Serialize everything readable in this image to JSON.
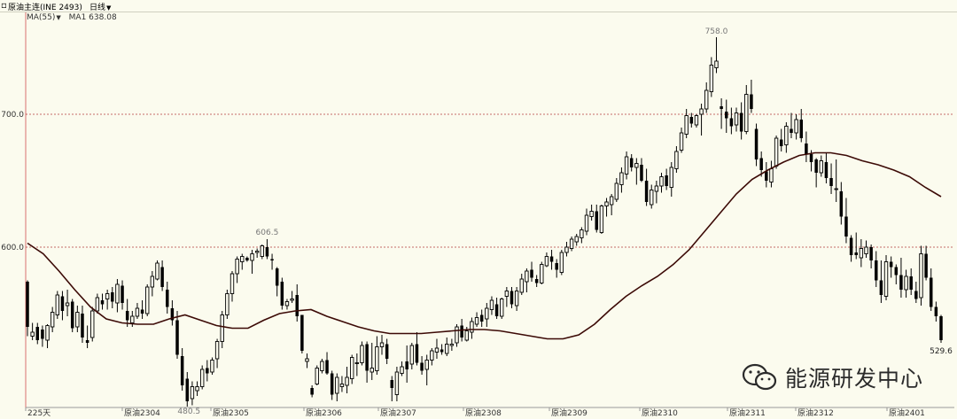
{
  "header": {
    "symbol_icon": "square-icon",
    "title": "原油主连(INE 2493)",
    "period": "日线",
    "period_icon": "chevron-down-icon"
  },
  "indicator": {
    "selector": "MA(55)",
    "selector_icon": "chevron-down-icon",
    "value_text": "MA1 638.08"
  },
  "watermark": {
    "text": "能源研发中心",
    "icon": "wechat-icon"
  },
  "colors": {
    "background": "#fbfbee",
    "up_candle": "#000000",
    "down_candle": "#000000",
    "ma_line": "#3c0a06",
    "grid_dashed": "#b43c3c",
    "axis_line": "#d87070"
  },
  "chart_data": {
    "type": "candlestick",
    "indicator": "MA55",
    "ylim": [
      470,
      780
    ],
    "yticks": [
      600.0,
      700.0
    ],
    "ytick_labels": [
      "600.0",
      "700.0"
    ],
    "grid_lines": [
      600,
      700
    ],
    "xtick_labels": [
      "225天",
      "原油2304",
      "原油2305",
      "原油2306",
      "原油2307",
      "原油2308",
      "原油2309",
      "原油2310",
      "原油2311",
      "原油2312",
      "原油2401"
    ],
    "annotations": [
      {
        "text": "758.0",
        "type": "max"
      },
      {
        "text": "606.5",
        "type": "local-high"
      },
      {
        "text": "480.5",
        "type": "min"
      },
      {
        "text": "529.6",
        "type": "last-low"
      }
    ],
    "ma_points": [
      [
        0,
        603
      ],
      [
        5,
        595
      ],
      [
        10,
        582
      ],
      [
        15,
        568
      ],
      [
        20,
        555
      ],
      [
        25,
        546
      ],
      [
        30,
        543
      ],
      [
        35,
        542
      ],
      [
        40,
        542
      ],
      [
        45,
        546
      ],
      [
        50,
        549
      ],
      [
        55,
        545
      ],
      [
        60,
        541
      ],
      [
        65,
        539
      ],
      [
        70,
        539
      ],
      [
        75,
        545
      ],
      [
        80,
        550
      ],
      [
        85,
        552
      ],
      [
        90,
        553
      ],
      [
        95,
        548
      ],
      [
        100,
        544
      ],
      [
        105,
        540
      ],
      [
        110,
        537
      ],
      [
        115,
        535
      ],
      [
        120,
        535
      ],
      [
        125,
        535
      ],
      [
        130,
        536
      ],
      [
        135,
        537
      ],
      [
        140,
        538
      ],
      [
        145,
        538
      ],
      [
        150,
        537
      ],
      [
        155,
        535
      ],
      [
        160,
        533
      ],
      [
        165,
        531
      ],
      [
        170,
        531
      ],
      [
        175,
        534
      ],
      [
        180,
        542
      ],
      [
        185,
        553
      ],
      [
        190,
        563
      ],
      [
        195,
        571
      ],
      [
        200,
        578
      ],
      [
        205,
        587
      ],
      [
        210,
        598
      ],
      [
        215,
        612
      ],
      [
        220,
        626
      ],
      [
        225,
        640
      ],
      [
        230,
        651
      ],
      [
        235,
        658
      ],
      [
        240,
        664
      ],
      [
        245,
        669
      ],
      [
        250,
        671
      ],
      [
        255,
        671
      ],
      [
        260,
        669
      ],
      [
        265,
        665
      ],
      [
        270,
        662
      ],
      [
        275,
        658
      ],
      [
        280,
        653
      ],
      [
        285,
        645
      ],
      [
        290,
        638
      ]
    ],
    "ohlc": [
      [
        574,
        575,
        533,
        540
      ],
      [
        533,
        543,
        530,
        536
      ],
      [
        540,
        543,
        527,
        530
      ],
      [
        538,
        541,
        525,
        531
      ],
      [
        530,
        542,
        524,
        541
      ],
      [
        540,
        555,
        536,
        551
      ],
      [
        549,
        567,
        546,
        564
      ],
      [
        563,
        567,
        545,
        552
      ],
      [
        556,
        568,
        548,
        558
      ],
      [
        559,
        561,
        536,
        539
      ],
      [
        540,
        556,
        536,
        551
      ],
      [
        550,
        556,
        528,
        532
      ],
      [
        530,
        541,
        524,
        528
      ],
      [
        532,
        555,
        529,
        552
      ],
      [
        552,
        565,
        550,
        562
      ],
      [
        560,
        565,
        553,
        557
      ],
      [
        561,
        568,
        553,
        565
      ],
      [
        566,
        570,
        554,
        559
      ],
      [
        558,
        576,
        551,
        572
      ],
      [
        571,
        575,
        553,
        558
      ],
      [
        552,
        561,
        540,
        545
      ],
      [
        543,
        552,
        540,
        548
      ],
      [
        548,
        558,
        546,
        554
      ],
      [
        553,
        560,
        546,
        550
      ],
      [
        550,
        572,
        548,
        570
      ],
      [
        570,
        582,
        563,
        578
      ],
      [
        576,
        590,
        575,
        588
      ],
      [
        585,
        590,
        567,
        570
      ],
      [
        568,
        574,
        550,
        555
      ],
      [
        554,
        560,
        541,
        545
      ],
      [
        545,
        552,
        516,
        519
      ],
      [
        518,
        524,
        492,
        496
      ],
      [
        501,
        506,
        480,
        484
      ],
      [
        486,
        499,
        481,
        495
      ],
      [
        492,
        499,
        488,
        495
      ],
      [
        495,
        511,
        493,
        508
      ],
      [
        509,
        515,
        499,
        505
      ],
      [
        506,
        517,
        504,
        515
      ],
      [
        516,
        531,
        509,
        529
      ],
      [
        529,
        552,
        524,
        549
      ],
      [
        549,
        568,
        546,
        565
      ],
      [
        565,
        582,
        559,
        580
      ],
      [
        580,
        593,
        573,
        591
      ],
      [
        589,
        595,
        583,
        593
      ],
      [
        592,
        593,
        589,
        590
      ],
      [
        590,
        598,
        580,
        595
      ],
      [
        596,
        599,
        592,
        597
      ],
      [
        593,
        602,
        591,
        601
      ],
      [
        600,
        606,
        591,
        593
      ],
      [
        591,
        595,
        583,
        590
      ],
      [
        584,
        585,
        563,
        571
      ],
      [
        574,
        577,
        553,
        556
      ],
      [
        556,
        561,
        553,
        559
      ],
      [
        560,
        567,
        558,
        561
      ],
      [
        564,
        572,
        544,
        548
      ],
      [
        549,
        549,
        520,
        522
      ],
      [
        514,
        520,
        509,
        516
      ],
      [
        494,
        496,
        487,
        489
      ],
      [
        497,
        511,
        496,
        509
      ],
      [
        507,
        516,
        505,
        514
      ],
      [
        515,
        521,
        504,
        505
      ],
      [
        505,
        507,
        485,
        489
      ],
      [
        490,
        505,
        484,
        502
      ],
      [
        495,
        503,
        491,
        497
      ],
      [
        496,
        510,
        490,
        502
      ],
      [
        501,
        519,
        497,
        517
      ],
      [
        513,
        520,
        503,
        513
      ],
      [
        513,
        529,
        511,
        526
      ],
      [
        527,
        529,
        498,
        507
      ],
      [
        506,
        528,
        500,
        509
      ],
      [
        507,
        533,
        504,
        525
      ],
      [
        525,
        534,
        519,
        528
      ],
      [
        527,
        531,
        512,
        516
      ],
      [
        500,
        503,
        484,
        494
      ],
      [
        489,
        510,
        484,
        506
      ],
      [
        505,
        514,
        503,
        510
      ],
      [
        514,
        526,
        498,
        508
      ],
      [
        512,
        528,
        508,
        526
      ],
      [
        527,
        536,
        511,
        513
      ],
      [
        513,
        518,
        504,
        507
      ],
      [
        508,
        519,
        496,
        515
      ],
      [
        515,
        524,
        511,
        522
      ],
      [
        521,
        531,
        516,
        524
      ],
      [
        523,
        527,
        519,
        521
      ],
      [
        520,
        532,
        518,
        527
      ],
      [
        526,
        531,
        522,
        527
      ],
      [
        528,
        542,
        525,
        540
      ],
      [
        541,
        546,
        529,
        532
      ],
      [
        530,
        540,
        529,
        537
      ],
      [
        536,
        547,
        531,
        544
      ],
      [
        542,
        551,
        540,
        547
      ],
      [
        549,
        553,
        540,
        544
      ],
      [
        546,
        558,
        540,
        554
      ],
      [
        553,
        563,
        549,
        560
      ],
      [
        557,
        562,
        546,
        548
      ],
      [
        548,
        562,
        546,
        561
      ],
      [
        563,
        570,
        555,
        567
      ],
      [
        567,
        570,
        554,
        557
      ],
      [
        556,
        570,
        552,
        567
      ],
      [
        566,
        580,
        564,
        576
      ],
      [
        574,
        584,
        566,
        582
      ],
      [
        583,
        589,
        574,
        577
      ],
      [
        576,
        579,
        570,
        573
      ],
      [
        573,
        589,
        572,
        587
      ],
      [
        586,
        596,
        585,
        593
      ],
      [
        593,
        598,
        583,
        589
      ],
      [
        588,
        591,
        577,
        583
      ],
      [
        581,
        598,
        579,
        596
      ],
      [
        596,
        604,
        593,
        600
      ],
      [
        599,
        608,
        597,
        606
      ],
      [
        604,
        610,
        601,
        608
      ],
      [
        607,
        615,
        603,
        613
      ],
      [
        612,
        629,
        609,
        624
      ],
      [
        623,
        632,
        620,
        627
      ],
      [
        627,
        632,
        611,
        613
      ],
      [
        611,
        632,
        610,
        631
      ],
      [
        631,
        637,
        623,
        634
      ],
      [
        632,
        640,
        624,
        638
      ],
      [
        636,
        652,
        634,
        648
      ],
      [
        647,
        660,
        641,
        656
      ],
      [
        655,
        672,
        651,
        668
      ],
      [
        667,
        670,
        657,
        660
      ],
      [
        660,
        667,
        647,
        663
      ],
      [
        662,
        667,
        649,
        650
      ],
      [
        650,
        659,
        631,
        634
      ],
      [
        632,
        647,
        629,
        643
      ],
      [
        642,
        650,
        633,
        646
      ],
      [
        646,
        656,
        641,
        653
      ],
      [
        654,
        659,
        643,
        646
      ],
      [
        645,
        664,
        638,
        660
      ],
      [
        659,
        676,
        656,
        672
      ],
      [
        673,
        690,
        671,
        686
      ],
      [
        685,
        704,
        682,
        699
      ],
      [
        698,
        701,
        690,
        693
      ],
      [
        692,
        700,
        690,
        699
      ],
      [
        700,
        708,
        684,
        704
      ],
      [
        704,
        724,
        701,
        718
      ],
      [
        717,
        743,
        713,
        737
      ],
      [
        735,
        758,
        731,
        740
      ],
      [
        706,
        712,
        689,
        704
      ],
      [
        702,
        711,
        686,
        697
      ],
      [
        697,
        705,
        685,
        691
      ],
      [
        692,
        705,
        687,
        701
      ],
      [
        701,
        709,
        681,
        687
      ],
      [
        687,
        722,
        685,
        715
      ],
      [
        715,
        726,
        701,
        704
      ],
      [
        689,
        693,
        661,
        666
      ],
      [
        667,
        672,
        653,
        658
      ],
      [
        657,
        664,
        645,
        650
      ],
      [
        649,
        665,
        645,
        659
      ],
      [
        661,
        684,
        659,
        682
      ],
      [
        681,
        689,
        672,
        676
      ],
      [
        677,
        694,
        671,
        691
      ],
      [
        689,
        701,
        682,
        686
      ],
      [
        686,
        700,
        681,
        696
      ],
      [
        696,
        704,
        679,
        682
      ],
      [
        678,
        687,
        664,
        670
      ],
      [
        670,
        673,
        657,
        664
      ],
      [
        666,
        667,
        645,
        656
      ],
      [
        656,
        669,
        653,
        665
      ],
      [
        664,
        671,
        648,
        652
      ],
      [
        652,
        663,
        640,
        646
      ],
      [
        644,
        666,
        634,
        644
      ],
      [
        642,
        649,
        617,
        623
      ],
      [
        623,
        637,
        603,
        608
      ],
      [
        607,
        609,
        589,
        594
      ],
      [
        596,
        611,
        591,
        594
      ],
      [
        592,
        606,
        585,
        599
      ],
      [
        595,
        605,
        592,
        600
      ],
      [
        600,
        602,
        584,
        590
      ],
      [
        590,
        597,
        570,
        575
      ],
      [
        575,
        590,
        558,
        564
      ],
      [
        563,
        594,
        560,
        589
      ],
      [
        589,
        593,
        577,
        585
      ],
      [
        585,
        587,
        572,
        579
      ],
      [
        579,
        592,
        562,
        568
      ],
      [
        568,
        583,
        562,
        578
      ],
      [
        578,
        584,
        564,
        568
      ],
      [
        567,
        574,
        558,
        561
      ],
      [
        562,
        601,
        556,
        595
      ],
      [
        595,
        601,
        575,
        577
      ],
      [
        577,
        584,
        552,
        555
      ],
      [
        555,
        559,
        544,
        548
      ],
      [
        548,
        549,
        528,
        530
      ]
    ]
  }
}
